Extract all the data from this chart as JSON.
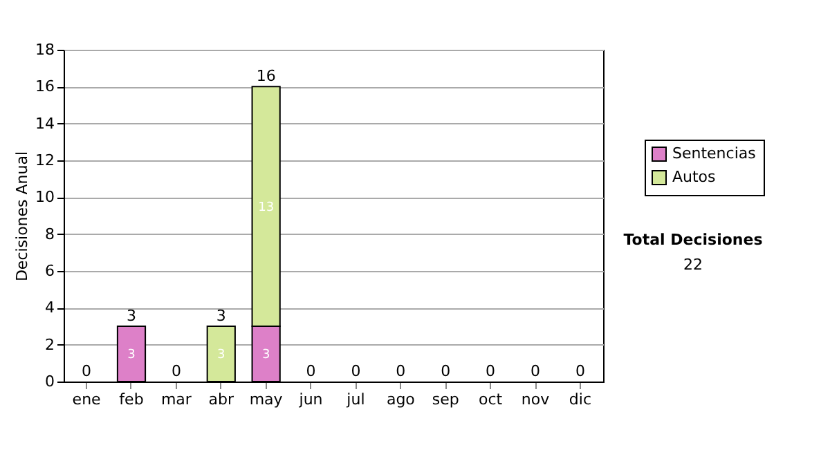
{
  "chart_data": {
    "type": "bar",
    "stacked": true,
    "ylabel": "Decisiones Anual",
    "categories": [
      "ene",
      "feb",
      "mar",
      "abr",
      "may",
      "jun",
      "jul",
      "ago",
      "sep",
      "oct",
      "nov",
      "dic"
    ],
    "series": [
      {
        "name": "Sentencias",
        "color": "#dd80c8",
        "values": [
          0,
          3,
          0,
          0,
          3,
          0,
          0,
          0,
          0,
          0,
          0,
          0
        ],
        "value_labels": [
          null,
          "3",
          null,
          null,
          "3",
          null,
          null,
          null,
          null,
          null,
          null,
          null
        ]
      },
      {
        "name": "Autos",
        "color": "#d4e89a",
        "values": [
          0,
          0,
          0,
          3,
          13,
          0,
          0,
          0,
          0,
          0,
          0,
          0
        ],
        "value_labels": [
          null,
          null,
          null,
          "3",
          "13",
          null,
          null,
          null,
          null,
          null,
          null,
          null
        ]
      }
    ],
    "totals": [
      "0",
      "3",
      "0",
      "3",
      "16",
      "0",
      "0",
      "0",
      "0",
      "0",
      "0",
      "0"
    ],
    "ylim": [
      0,
      18
    ],
    "yticks": [
      0,
      2,
      4,
      6,
      8,
      10,
      12,
      14,
      16,
      18
    ],
    "grid": "y",
    "legend": "right",
    "annotations": [
      "Total Decisiones",
      "22"
    ]
  }
}
